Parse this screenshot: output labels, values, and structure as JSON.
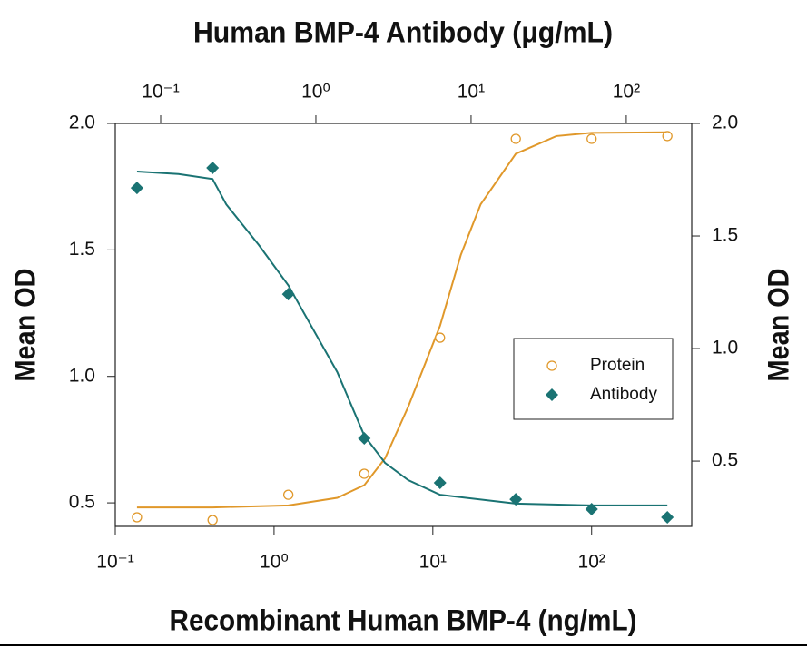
{
  "chart_data": {
    "type": "scatter",
    "title": "Human BMP-4 Antibody (μg/mL)",
    "x_label": "Recombinant Human BMP-4 (ng/mL)",
    "y_label": "Mean OD",
    "y2_label": "Mean OD",
    "x_log": true,
    "x2_log": true,
    "xlim": [
      0.1,
      427
    ],
    "xticks": [
      {
        "value": 0.1,
        "label": "10⁻¹"
      },
      {
        "value": 1,
        "label": "10⁰"
      },
      {
        "value": 10,
        "label": "10¹"
      },
      {
        "value": 100,
        "label": "10²"
      }
    ],
    "x2lim": [
      0.051,
      264
    ],
    "x2ticks": [
      {
        "value": 0.1,
        "label": "10⁻¹"
      },
      {
        "value": 1,
        "label": "10⁰"
      },
      {
        "value": 10,
        "label": "10¹"
      },
      {
        "value": 100,
        "label": "10²"
      }
    ],
    "ylim": [
      0.407,
      2.0
    ],
    "yticks": [
      0.5,
      {
        "value": 1,
        "label": "1.0"
      },
      1.5,
      {
        "value": 2,
        "label": "2.0"
      }
    ],
    "y2lim": [
      0.21,
      2.0
    ],
    "y2ticks": [
      0.5,
      {
        "value": 1,
        "label": "1.0"
      },
      1.5,
      {
        "value": 2,
        "label": "2.0"
      }
    ],
    "legend": "center-right",
    "series": [
      {
        "name": "Protein",
        "color": "#e0982a",
        "marker": "open-circle",
        "x": [
          0.137,
          0.41,
          1.23,
          3.7,
          11.1,
          33.3,
          100,
          300
        ],
        "values": [
          0.443,
          0.432,
          0.532,
          0.615,
          1.153,
          1.939,
          1.939,
          1.95
        ],
        "fit": {
          "x": [
            0.137,
            0.41,
            1.23,
            2.5,
            3.7,
            5,
            7,
            11.1,
            15,
            20,
            33.3,
            60,
            100,
            300
          ],
          "values": [
            0.482,
            0.482,
            0.49,
            0.52,
            0.57,
            0.676,
            0.88,
            1.2,
            1.48,
            1.68,
            1.88,
            1.95,
            1.963,
            1.965
          ]
        }
      },
      {
        "name": "Antibody",
        "color": "#1a7373",
        "marker": "filled-diamond",
        "x": [
          0.137,
          0.41,
          1.23,
          3.7,
          11.1,
          33.3,
          100,
          300
        ],
        "values": [
          1.745,
          1.824,
          1.325,
          0.755,
          0.579,
          0.514,
          0.475,
          0.443
        ],
        "fit": {
          "x": [
            0.137,
            0.25,
            0.41,
            0.5,
            0.8,
            1.23,
            2.5,
            3.7,
            5,
            7,
            11.1,
            33.3,
            100,
            300
          ],
          "values": [
            1.81,
            1.8,
            1.78,
            1.68,
            1.52,
            1.36,
            1.017,
            0.766,
            0.658,
            0.59,
            0.532,
            0.497,
            0.49,
            0.49
          ]
        }
      }
    ]
  }
}
